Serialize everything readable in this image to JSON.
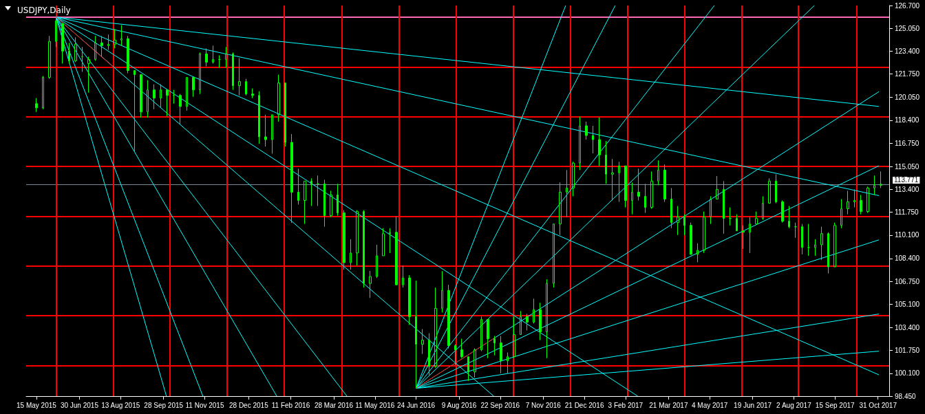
{
  "chart_data": {
    "type": "candlestick",
    "title": "USDJPY,Daily",
    "color": "#00ff00",
    "grid": false,
    "xlim": [
      "2015-05-04",
      "2017-11-12"
    ],
    "xticks": [
      {
        "value": "2015-05-15",
        "label": "15 May 2015"
      },
      {
        "value": "2015-06-30",
        "label": "30 Jun 2015"
      },
      {
        "value": "2015-08-13",
        "label": "13 Aug 2015"
      },
      {
        "value": "2015-09-28",
        "label": "28 Sep 2015"
      },
      {
        "value": "2015-11-11",
        "label": "11 Nov 2015"
      },
      {
        "value": "2015-12-28",
        "label": "28 Dec 2015"
      },
      {
        "value": "2016-02-11",
        "label": "11 Feb 2016"
      },
      {
        "value": "2016-03-28",
        "label": "28 Mar 2016"
      },
      {
        "value": "2016-05-11",
        "label": "11 May 2016"
      },
      {
        "value": "2016-06-24",
        "label": "24 Jun 2016"
      },
      {
        "value": "2016-08-09",
        "label": "9 Aug 2016"
      },
      {
        "value": "2016-09-22",
        "label": "22 Sep 2016"
      },
      {
        "value": "2016-11-07",
        "label": "7 Nov 2016"
      },
      {
        "value": "2016-12-21",
        "label": "21 Dec 2016"
      },
      {
        "value": "2017-02-03",
        "label": "3 Feb 2017"
      },
      {
        "value": "2017-03-21",
        "label": "21 Mar 2017"
      },
      {
        "value": "2017-05-04",
        "label": "4 May 2017"
      },
      {
        "value": "2017-06-19",
        "label": "19 Jun 2017"
      },
      {
        "value": "2017-08-02",
        "label": "2 Aug 2017"
      },
      {
        "value": "2017-09-15",
        "label": "15 Sep 2017"
      },
      {
        "value": "2017-10-31",
        "label": "31 Oct 2017"
      }
    ],
    "ylim": [
      98.45,
      126.7
    ],
    "yticks": [
      {
        "value": 98.45,
        "label": "98.450"
      },
      {
        "value": 100.1,
        "label": "100.100"
      },
      {
        "value": 101.75,
        "label": "101.750"
      },
      {
        "value": 103.4,
        "label": "103.400"
      },
      {
        "value": 105.1,
        "label": "105.100"
      },
      {
        "value": 106.75,
        "label": "106.750"
      },
      {
        "value": 108.4,
        "label": "108.400"
      },
      {
        "value": 110.1,
        "label": "110.100"
      },
      {
        "value": 111.75,
        "label": "111.750"
      },
      {
        "value": 113.4,
        "label": "113.400"
      },
      {
        "value": 115.05,
        "label": "115.050"
      },
      {
        "value": 116.75,
        "label": "116.750"
      },
      {
        "value": 118.4,
        "label": "118.400"
      },
      {
        "value": 120.05,
        "label": "120.050"
      },
      {
        "value": 121.75,
        "label": "121.750"
      },
      {
        "value": 123.4,
        "label": "123.400"
      },
      {
        "value": 125.05,
        "label": "125.050"
      },
      {
        "value": 126.7,
        "label": "126.700"
      }
    ],
    "x": [
      "2015-05-15",
      "2015-05-22",
      "2015-05-29",
      "2015-06-05",
      "2015-06-12",
      "2015-06-19",
      "2015-06-26",
      "2015-07-03",
      "2015-07-10",
      "2015-07-17",
      "2015-07-24",
      "2015-07-31",
      "2015-08-07",
      "2015-08-14",
      "2015-08-21",
      "2015-08-28",
      "2015-09-04",
      "2015-09-11",
      "2015-09-18",
      "2015-09-25",
      "2015-10-02",
      "2015-10-09",
      "2015-10-16",
      "2015-10-23",
      "2015-10-30",
      "2015-11-06",
      "2015-11-13",
      "2015-11-20",
      "2015-11-27",
      "2015-12-04",
      "2015-12-11",
      "2015-12-18",
      "2015-12-25",
      "2016-01-01",
      "2016-01-08",
      "2016-01-15",
      "2016-01-22",
      "2016-01-29",
      "2016-02-05",
      "2016-02-12",
      "2016-02-19",
      "2016-02-26",
      "2016-03-04",
      "2016-03-11",
      "2016-03-18",
      "2016-03-25",
      "2016-04-01",
      "2016-04-08",
      "2016-04-15",
      "2016-04-22",
      "2016-04-29",
      "2016-05-06",
      "2016-05-13",
      "2016-05-20",
      "2016-05-27",
      "2016-06-03",
      "2016-06-10",
      "2016-06-17",
      "2016-06-24",
      "2016-07-01",
      "2016-07-08",
      "2016-07-15",
      "2016-07-22",
      "2016-07-29",
      "2016-08-05",
      "2016-08-12",
      "2016-08-19",
      "2016-08-26",
      "2016-09-02",
      "2016-09-09",
      "2016-09-16",
      "2016-09-23",
      "2016-09-30",
      "2016-10-07",
      "2016-10-14",
      "2016-10-21",
      "2016-10-28",
      "2016-11-04",
      "2016-11-11",
      "2016-11-18",
      "2016-11-25",
      "2016-12-02",
      "2016-12-09",
      "2016-12-16",
      "2016-12-23",
      "2016-12-30",
      "2017-01-06",
      "2017-01-13",
      "2017-01-20",
      "2017-01-27",
      "2017-02-03",
      "2017-02-10",
      "2017-02-17",
      "2017-02-24",
      "2017-03-03",
      "2017-03-10",
      "2017-03-17",
      "2017-03-24",
      "2017-03-31",
      "2017-04-07",
      "2017-04-14",
      "2017-04-21",
      "2017-04-28",
      "2017-05-05",
      "2017-05-12",
      "2017-05-19",
      "2017-05-26",
      "2017-06-02",
      "2017-06-09",
      "2017-06-16",
      "2017-06-23",
      "2017-06-30",
      "2017-07-07",
      "2017-07-14",
      "2017-07-21",
      "2017-07-28",
      "2017-08-04",
      "2017-08-11",
      "2017-08-18",
      "2017-08-25",
      "2017-09-01",
      "2017-09-08",
      "2017-09-15",
      "2017-09-22",
      "2017-09-29",
      "2017-10-06",
      "2017-10-13",
      "2017-10-20",
      "2017-10-27",
      "2017-11-03"
    ],
    "ohlc": [
      [
        119.6,
        120.0,
        119.0,
        119.3
      ],
      [
        119.3,
        121.6,
        119.2,
        121.5
      ],
      [
        121.5,
        124.5,
        121.4,
        124.1
      ],
      [
        124.1,
        125.86,
        123.7,
        125.6
      ],
      [
        125.4,
        125.4,
        122.5,
        123.4
      ],
      [
        123.4,
        124.0,
        122.5,
        122.7
      ],
      [
        122.7,
        124.4,
        122.6,
        123.9
      ],
      [
        123.0,
        123.7,
        121.9,
        123.0
      ],
      [
        122.5,
        123.0,
        120.4,
        122.8
      ],
      [
        122.8,
        124.5,
        122.7,
        124.0
      ],
      [
        124.0,
        124.5,
        123.0,
        123.8
      ],
      [
        123.8,
        124.6,
        123.5,
        123.9
      ],
      [
        123.9,
        125.0,
        123.6,
        124.2
      ],
      [
        124.2,
        125.28,
        123.8,
        124.3
      ],
      [
        124.3,
        124.5,
        121.8,
        122.0
      ],
      [
        122.0,
        122.0,
        116.15,
        121.7
      ],
      [
        121.7,
        121.7,
        118.6,
        119.0
      ],
      [
        119.0,
        121.3,
        118.6,
        120.6
      ],
      [
        120.6,
        121.0,
        119.2,
        120.0
      ],
      [
        120.0,
        121.0,
        119.3,
        120.6
      ],
      [
        120.6,
        120.6,
        118.7,
        120.2
      ],
      [
        120.2,
        120.6,
        119.6,
        120.2
      ],
      [
        120.2,
        120.3,
        118.1,
        119.4
      ],
      [
        119.4,
        121.5,
        119.1,
        121.5
      ],
      [
        121.5,
        121.5,
        120.1,
        120.6
      ],
      [
        120.6,
        123.3,
        120.3,
        123.2
      ],
      [
        123.2,
        123.6,
        122.3,
        122.6
      ],
      [
        122.6,
        123.8,
        122.5,
        122.8
      ],
      [
        122.8,
        123.1,
        122.2,
        122.8
      ],
      [
        122.8,
        123.7,
        122.2,
        123.2
      ],
      [
        123.2,
        123.3,
        120.6,
        120.9
      ],
      [
        120.9,
        122.9,
        120.2,
        121.2
      ],
      [
        121.2,
        121.4,
        120.2,
        120.3
      ],
      [
        120.3,
        120.7,
        120.0,
        120.2
      ],
      [
        120.2,
        120.5,
        116.7,
        117.2
      ],
      [
        117.2,
        118.8,
        116.5,
        117.0
      ],
      [
        117.0,
        118.8,
        115.98,
        118.8
      ],
      [
        118.8,
        121.7,
        118.3,
        121.1
      ],
      [
        121.1,
        121.1,
        116.5,
        116.8
      ],
      [
        116.8,
        117.4,
        110.98,
        113.2
      ],
      [
        113.2,
        114.9,
        112.3,
        112.6
      ],
      [
        112.6,
        114.0,
        110.9,
        114.0
      ],
      [
        114.0,
        114.2,
        112.2,
        113.8
      ],
      [
        113.8,
        114.4,
        112.2,
        113.8
      ],
      [
        113.8,
        114.1,
        110.7,
        111.5
      ],
      [
        111.5,
        113.3,
        111.4,
        113.0
      ],
      [
        113.0,
        113.8,
        111.5,
        111.7
      ],
      [
        111.7,
        111.9,
        107.6,
        108.1
      ],
      [
        108.1,
        109.8,
        107.6,
        108.8
      ],
      [
        108.8,
        111.9,
        107.9,
        111.8
      ],
      [
        111.8,
        111.9,
        106.3,
        106.6
      ],
      [
        106.6,
        107.5,
        105.55,
        107.1
      ],
      [
        107.1,
        109.4,
        107.0,
        108.6
      ],
      [
        108.6,
        110.6,
        108.6,
        110.2
      ],
      [
        110.2,
        110.6,
        108.8,
        110.3
      ],
      [
        110.3,
        111.45,
        106.5,
        106.5
      ],
      [
        106.5,
        107.9,
        106.3,
        107.0
      ],
      [
        107.0,
        107.2,
        103.6,
        104.2
      ],
      [
        104.2,
        106.8,
        99.02,
        102.2
      ],
      [
        102.2,
        103.3,
        101.5,
        102.5
      ],
      [
        102.5,
        103.0,
        99.98,
        100.6
      ],
      [
        100.6,
        106.3,
        100.5,
        104.8
      ],
      [
        104.8,
        107.49,
        104.5,
        106.1
      ],
      [
        106.1,
        106.5,
        101.9,
        102.1
      ],
      [
        102.1,
        102.2,
        100.7,
        101.8
      ],
      [
        101.8,
        102.6,
        101.2,
        101.3
      ],
      [
        101.3,
        101.3,
        99.55,
        100.2
      ],
      [
        100.2,
        101.9,
        99.8,
        101.8
      ],
      [
        101.8,
        104.2,
        101.7,
        104.0
      ],
      [
        104.0,
        104.0,
        101.2,
        102.6
      ],
      [
        102.6,
        102.8,
        101.4,
        102.3
      ],
      [
        102.3,
        102.8,
        100.1,
        101.0
      ],
      [
        101.0,
        101.6,
        100.1,
        101.3
      ],
      [
        101.3,
        104.2,
        101.2,
        102.9
      ],
      [
        102.9,
        104.6,
        102.9,
        104.2
      ],
      [
        104.2,
        104.4,
        103.2,
        103.8
      ],
      [
        103.8,
        105.5,
        103.7,
        104.7
      ],
      [
        104.7,
        105.2,
        102.5,
        103.1
      ],
      [
        103.1,
        106.9,
        101.2,
        106.6
      ],
      [
        106.6,
        110.9,
        106.3,
        110.9
      ],
      [
        110.9,
        113.9,
        110.1,
        113.2
      ],
      [
        113.2,
        114.8,
        111.4,
        113.5
      ],
      [
        113.5,
        115.4,
        112.9,
        115.3
      ],
      [
        115.3,
        118.66,
        114.8,
        118.0
      ],
      [
        118.0,
        118.3,
        117.0,
        117.3
      ],
      [
        117.3,
        118.0,
        116.0,
        117.0
      ],
      [
        117.0,
        118.6,
        115.1,
        115.9
      ],
      [
        115.9,
        116.9,
        113.8,
        114.5
      ],
      [
        114.5,
        115.6,
        112.6,
        114.6
      ],
      [
        114.6,
        115.4,
        112.5,
        115.1
      ],
      [
        115.1,
        115.1,
        112.1,
        112.6
      ],
      [
        112.6,
        113.9,
        111.6,
        113.2
      ],
      [
        113.2,
        114.9,
        112.6,
        112.9
      ],
      [
        112.9,
        113.8,
        111.7,
        112.1
      ],
      [
        112.1,
        114.7,
        112.0,
        114.0
      ],
      [
        114.0,
        115.5,
        113.7,
        114.8
      ],
      [
        114.8,
        115.2,
        112.5,
        112.7
      ],
      [
        112.7,
        113.5,
        110.6,
        111.0
      ],
      [
        111.0,
        112.2,
        110.1,
        111.4
      ],
      [
        111.4,
        111.6,
        110.1,
        110.8
      ],
      [
        110.8,
        111.0,
        108.7,
        108.7
      ],
      [
        108.7,
        109.5,
        108.13,
        109.0
      ],
      [
        109.0,
        111.8,
        108.8,
        111.4
      ],
      [
        111.4,
        112.9,
        110.9,
        112.7
      ],
      [
        112.7,
        114.37,
        112.7,
        113.4
      ],
      [
        113.4,
        114.0,
        110.2,
        111.3
      ],
      [
        111.3,
        112.1,
        110.8,
        111.3
      ],
      [
        111.3,
        111.6,
        110.4,
        110.4
      ],
      [
        110.4,
        110.8,
        109.1,
        110.3
      ],
      [
        110.3,
        111.4,
        108.8,
        110.9
      ],
      [
        110.9,
        111.8,
        110.9,
        111.3
      ],
      [
        111.3,
        112.9,
        111.2,
        112.4
      ],
      [
        112.4,
        114.2,
        112.4,
        114.0
      ],
      [
        114.0,
        114.49,
        112.4,
        112.5
      ],
      [
        112.5,
        112.6,
        111.0,
        111.1
      ],
      [
        111.1,
        112.2,
        110.6,
        110.7
      ],
      [
        110.7,
        111.0,
        109.9,
        110.7
      ],
      [
        110.7,
        110.9,
        108.7,
        109.2
      ],
      [
        109.2,
        110.9,
        108.6,
        109.2
      ],
      [
        109.2,
        109.8,
        108.6,
        109.4
      ],
      [
        109.4,
        110.7,
        108.3,
        110.2
      ],
      [
        110.2,
        110.3,
        107.32,
        107.8
      ],
      [
        107.8,
        111.0,
        107.8,
        110.8
      ],
      [
        110.8,
        112.7,
        110.6,
        112.0
      ],
      [
        112.0,
        113.3,
        111.6,
        112.5
      ],
      [
        112.5,
        113.4,
        112.1,
        112.6
      ],
      [
        112.6,
        113.0,
        111.6,
        111.8
      ],
      [
        111.8,
        113.6,
        111.7,
        113.5
      ],
      [
        113.5,
        114.4,
        113.0,
        113.7
      ],
      [
        113.7,
        114.7,
        113.5,
        113.771
      ]
    ],
    "series": [
      {
        "type": "line",
        "color": "#00ffff",
        "x": [
          "2015-06-05",
          "2017-11-01"
        ],
        "values": [
          125.86,
          119.4
        ]
      },
      {
        "type": "line",
        "color": "#00ffff",
        "x": [
          "2015-06-05",
          "2017-11-01"
        ],
        "values": [
          125.86,
          112.95
        ]
      },
      {
        "type": "line",
        "color": "#00ffff",
        "x": [
          "2015-06-05",
          "2017-11-01"
        ],
        "values": [
          125.86,
          99.99
        ]
      },
      {
        "type": "line",
        "color": "#00ffff",
        "x": [
          "2015-06-05",
          "2017-02-16"
        ],
        "values": [
          125.86,
          98.45
        ]
      },
      {
        "type": "line",
        "color": "#00ffff",
        "x": [
          "2015-06-05",
          "2016-09-15"
        ],
        "values": [
          125.86,
          98.45
        ]
      },
      {
        "type": "line",
        "color": "#00ffff",
        "x": [
          "2015-06-05",
          "2016-04-11"
        ],
        "values": [
          125.86,
          98.45
        ]
      },
      {
        "type": "line",
        "color": "#00ffff",
        "x": [
          "2015-06-05",
          "2016-01-27"
        ],
        "values": [
          125.86,
          98.45
        ]
      },
      {
        "type": "line",
        "color": "#00ffff",
        "x": [
          "2015-06-05",
          "2015-11-09"
        ],
        "values": [
          125.86,
          98.45
        ]
      },
      {
        "type": "line",
        "color": "#00ffff",
        "x": [
          "2015-06-05",
          "2015-10-01"
        ],
        "values": [
          125.86,
          98.45
        ]
      },
      {
        "type": "line",
        "color": "#ff0000",
        "x": [
          "2015-06-05",
          "2015-08-05"
        ],
        "values": [
          125.86,
          122.26
        ]
      },
      {
        "type": "line",
        "color": "#00ffff",
        "x": [
          "2016-06-24",
          "2017-11-01"
        ],
        "values": [
          99.02,
          101.7
        ]
      },
      {
        "type": "line",
        "color": "#00ffff",
        "x": [
          "2016-06-24",
          "2017-11-01"
        ],
        "values": [
          99.02,
          104.39
        ]
      },
      {
        "type": "line",
        "color": "#00ffff",
        "x": [
          "2016-06-24",
          "2017-11-01"
        ],
        "values": [
          99.02,
          109.75
        ]
      },
      {
        "type": "line",
        "color": "#00ffff",
        "x": [
          "2016-06-24",
          "2017-11-01"
        ],
        "values": [
          99.02,
          115.11
        ]
      },
      {
        "type": "line",
        "color": "#00ffff",
        "x": [
          "2016-06-24",
          "2017-11-01"
        ],
        "values": [
          99.02,
          120.47
        ]
      },
      {
        "type": "line",
        "color": "#00ffff",
        "x": [
          "2016-06-24",
          "2017-08-24"
        ],
        "values": [
          99.02,
          126.7
        ]
      },
      {
        "type": "line",
        "color": "#00ffff",
        "x": [
          "2016-06-24",
          "2017-05-09"
        ],
        "values": [
          99.02,
          126.7
        ]
      },
      {
        "type": "line",
        "color": "#00ffff",
        "x": [
          "2016-06-24",
          "2017-01-23"
        ],
        "values": [
          99.02,
          126.7
        ]
      },
      {
        "type": "line",
        "color": "#00ffff",
        "x": [
          "2016-06-24",
          "2016-12-01"
        ],
        "values": [
          99.02,
          126.7
        ]
      },
      {
        "type": "line",
        "color": "#ff0000",
        "x": [
          "2016-06-24",
          "2016-09-16"
        ],
        "values": [
          99.02,
          102.66
        ]
      }
    ],
    "ref_lines": [
      {
        "axis": "y",
        "value": 125.86,
        "color": "#ff69b4"
      },
      {
        "axis": "y",
        "value": 122.26,
        "color": "#ff0000"
      },
      {
        "axis": "y",
        "value": 118.66,
        "color": "#ff0000"
      },
      {
        "axis": "y",
        "value": 115.06,
        "color": "#ff0000"
      },
      {
        "axis": "y",
        "value": 111.46,
        "color": "#ff0000"
      },
      {
        "axis": "y",
        "value": 107.86,
        "color": "#ff0000"
      },
      {
        "axis": "y",
        "value": 104.26,
        "color": "#ff0000"
      },
      {
        "axis": "y",
        "value": 100.66,
        "color": "#ff0000"
      },
      {
        "axis": "y",
        "value": 113.771,
        "label": "113.771",
        "color": "#778899"
      },
      {
        "axis": "x",
        "value": "2015-06-05",
        "color": "#ff0000"
      },
      {
        "axis": "x",
        "value": "2015-08-05",
        "color": "#ff0000"
      },
      {
        "axis": "x",
        "value": "2015-10-05",
        "color": "#ff0000"
      },
      {
        "axis": "x",
        "value": "2015-12-05",
        "color": "#ff0000"
      },
      {
        "axis": "x",
        "value": "2016-02-04",
        "color": "#ff0000"
      },
      {
        "axis": "x",
        "value": "2016-04-06",
        "color": "#ff0000"
      },
      {
        "axis": "x",
        "value": "2016-06-06",
        "color": "#ff0000"
      },
      {
        "axis": "x",
        "value": "2016-08-06",
        "color": "#ff0000"
      },
      {
        "axis": "x",
        "value": "2016-10-06",
        "color": "#ff0000"
      },
      {
        "axis": "x",
        "value": "2016-12-06",
        "color": "#ff0000"
      },
      {
        "axis": "x",
        "value": "2017-02-05",
        "color": "#ff0000"
      },
      {
        "axis": "x",
        "value": "2017-04-07",
        "color": "#ff0000"
      },
      {
        "axis": "x",
        "value": "2017-06-07",
        "color": "#ff0000"
      },
      {
        "axis": "x",
        "value": "2017-08-07",
        "color": "#ff0000"
      },
      {
        "axis": "x",
        "value": "2017-10-08",
        "color": "#ff0000"
      }
    ]
  }
}
